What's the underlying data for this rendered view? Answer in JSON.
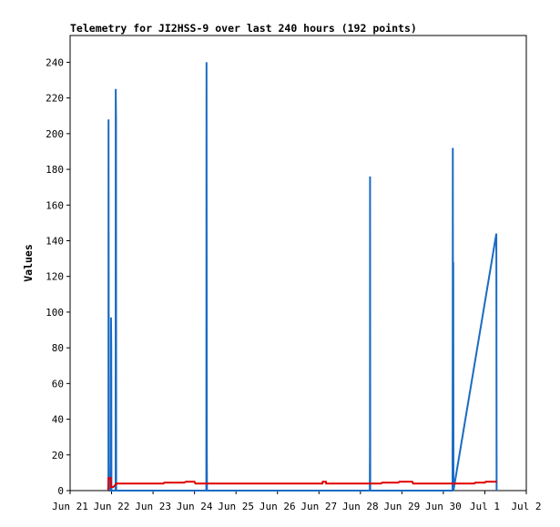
{
  "chart_data": {
    "type": "line",
    "title": "Telemetry for JI2HSS-9 over last 240 hours (192 points)",
    "xlabel": "",
    "ylabel": "Values",
    "ylim": [
      0,
      255
    ],
    "yticks": [
      0,
      20,
      40,
      60,
      80,
      100,
      120,
      140,
      160,
      180,
      200,
      220,
      240
    ],
    "xlim": [
      "Jun 21",
      "Jul 2"
    ],
    "xticks": [
      "Jun 21",
      "Jun 22",
      "Jun 23",
      "Jun 24",
      "Jun 25",
      "Jun 26",
      "Jun 27",
      "Jun 28",
      "Jun 29",
      "Jun 30",
      "Jul 1",
      "Jul 2"
    ],
    "grid": false,
    "legend": "none",
    "series": [
      {
        "color": "#1a6bc4",
        "points": [
          [
            "Jun 21 22:10",
            0
          ],
          [
            "Jun 21 22:15",
            208
          ],
          [
            "Jun 21 22:20",
            97
          ],
          [
            "Jun 21 22:28",
            17
          ],
          [
            "Jun 21 22:35",
            0
          ],
          [
            "Jun 21 23:35",
            0
          ],
          [
            "Jun 21 23:40",
            97
          ],
          [
            "Jun 21 23:48",
            80
          ],
          [
            "Jun 21 23:55",
            0
          ],
          [
            "Jun 22 02:20",
            0
          ],
          [
            "Jun 22 02:25",
            225
          ],
          [
            "Jun 22 02:32",
            208
          ],
          [
            "Jun 22 02:40",
            0
          ],
          [
            "Jun 24 06:50",
            0
          ],
          [
            "Jun 24 06:55",
            240
          ],
          [
            "Jun 24 07:05",
            25
          ],
          [
            "Jun 24 07:12",
            0
          ],
          [
            "Jun 28 05:25",
            0
          ],
          [
            "Jun 28 05:30",
            25
          ],
          [
            "Jun 28 05:35",
            176
          ],
          [
            "Jun 28 05:42",
            0
          ],
          [
            "Jun 30 05:20",
            0
          ],
          [
            "Jun 30 05:25",
            97
          ],
          [
            "Jun 30 05:30",
            192
          ],
          [
            "Jun 30 05:38",
            0
          ],
          [
            "Jun 30 05:45",
            128
          ],
          [
            "Jun 30 05:52",
            0
          ],
          [
            "Jul 1 06:40",
            144
          ],
          [
            "Jul 1 06:48",
            0
          ]
        ]
      },
      {
        "color": "#e00000",
        "points": [
          [
            "Jun 21 22:00",
            0
          ],
          [
            "Jun 21 22:10",
            7
          ],
          [
            "Jun 21 23:30",
            7
          ],
          [
            "Jun 21 23:45",
            2
          ],
          [
            "Jun 22 01:00",
            2
          ],
          [
            "Jun 22 02:00",
            3
          ],
          [
            "Jun 22 02:40",
            4
          ],
          [
            "Jun 23 06:00",
            4
          ],
          [
            "Jun 23 06:30",
            4.5
          ],
          [
            "Jun 23 18:00",
            4.5
          ],
          [
            "Jun 23 19:00",
            5
          ],
          [
            "Jun 24 00:00",
            5
          ],
          [
            "Jun 24 00:30",
            4
          ],
          [
            "Jun 27 02:00",
            4
          ],
          [
            "Jun 27 02:10",
            5
          ],
          [
            "Jun 27 04:00",
            5
          ],
          [
            "Jun 27 04:10",
            4
          ],
          [
            "Jun 28 12:00",
            4
          ],
          [
            "Jun 28 12:30",
            4.5
          ],
          [
            "Jun 28 22:00",
            4.5
          ],
          [
            "Jun 28 22:30",
            5
          ],
          [
            "Jun 29 06:00",
            5
          ],
          [
            "Jun 29 06:30",
            4
          ],
          [
            "Jun 30 18:00",
            4
          ],
          [
            "Jun 30 18:30",
            4.5
          ],
          [
            "Jul 1 00:00",
            4.5
          ],
          [
            "Jul 1 00:30",
            5
          ],
          [
            "Jul 1 07:00",
            5
          ]
        ]
      }
    ]
  }
}
